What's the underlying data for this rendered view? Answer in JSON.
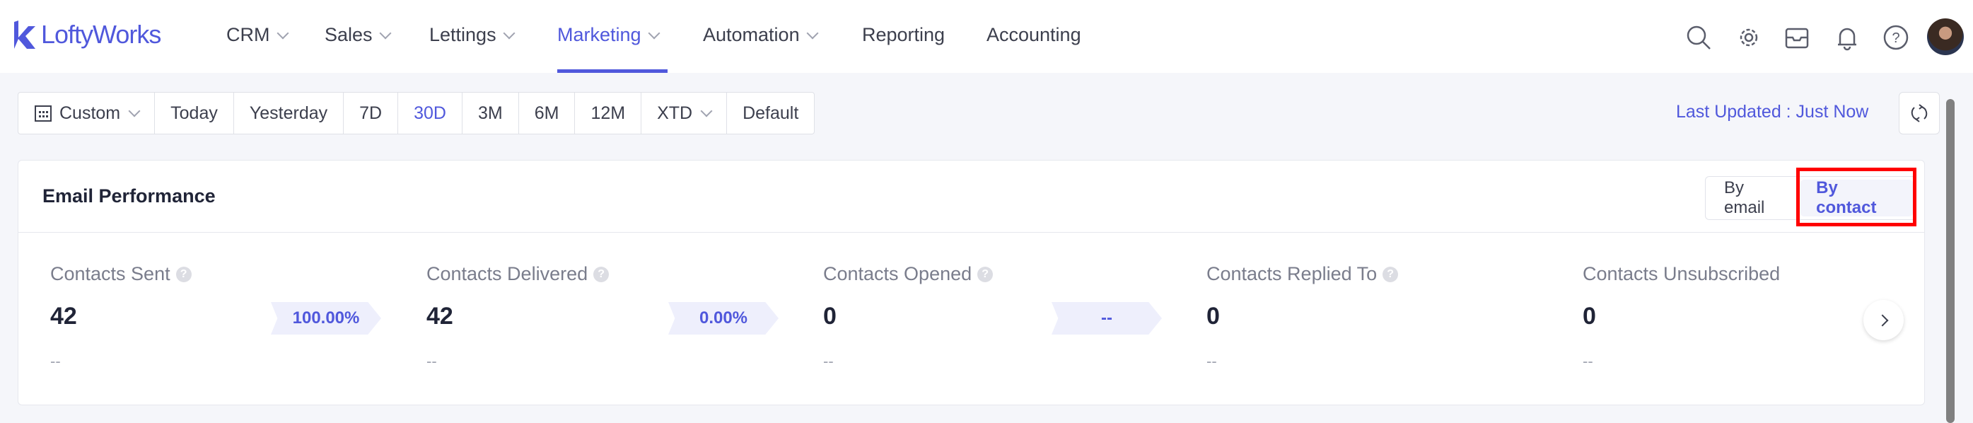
{
  "app": {
    "logo": "LoftyWorks"
  },
  "nav": {
    "items": [
      {
        "label": "CRM",
        "dropdown": true
      },
      {
        "label": "Sales",
        "dropdown": true
      },
      {
        "label": "Lettings",
        "dropdown": true
      },
      {
        "label": "Marketing",
        "dropdown": true,
        "active": true
      },
      {
        "label": "Automation",
        "dropdown": true
      },
      {
        "label": "Reporting"
      },
      {
        "label": "Accounting"
      }
    ],
    "icons": [
      "search-icon",
      "gear-icon",
      "inbox-icon",
      "bell-icon",
      "help-icon",
      "avatar"
    ]
  },
  "datebar": {
    "items": [
      "Custom",
      "Today",
      "Yesterday",
      "7D",
      "30D",
      "3M",
      "6M",
      "12M",
      "XTD",
      "Default"
    ],
    "selected": "30D"
  },
  "last_updated": "Last Updated : Just Now",
  "card": {
    "title": "Email Performance",
    "toggle": [
      "By email",
      "By contact"
    ],
    "toggle_selected": "By contact",
    "metrics": [
      {
        "label": "Contacts Sent",
        "value": "42",
        "sub": "--"
      },
      {
        "label": "Contacts Delivered",
        "value": "42",
        "sub": "--"
      },
      {
        "label": "Contacts Opened",
        "value": "0",
        "sub": "--"
      },
      {
        "label": "Contacts Replied To",
        "value": "0",
        "sub": "--"
      },
      {
        "label": "Contacts Unsubscribed",
        "value": "0",
        "sub": "--"
      }
    ],
    "rates": [
      "100.00%",
      "0.00%",
      "--"
    ]
  },
  "colors": {
    "accent": "#5058dc",
    "highlight": "#ff0000"
  }
}
